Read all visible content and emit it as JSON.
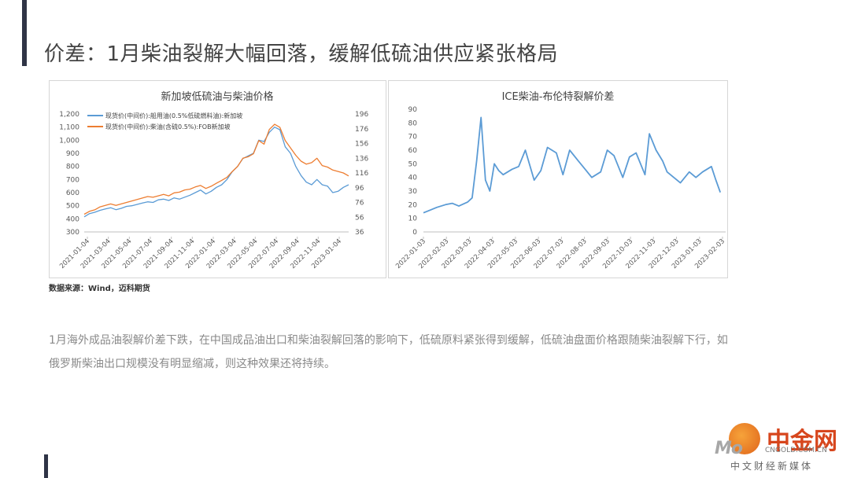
{
  "page": {
    "title": "价差：1月柴油裂解大幅回落，缓解低硫油供应紧张格局",
    "source": "数据来源：Wind，迈科期货",
    "body": "1月海外成品油裂解价差下跌，在中国成品油出口和柴油裂解回落的影响下，低硫原料紧张得到缓解，低硫油盘面价格跟随柴油裂解下行，如俄罗斯柴油出口规模没有明显缩减，则这种效果还将持续。"
  },
  "watermark": {
    "logo_text": "Mo",
    "cn_text": "中金网",
    "domain": "CNGOLD.COM.CN",
    "sub": "中文财经新媒体"
  },
  "colors": {
    "series_blue": "#5b9bd5",
    "series_orange": "#ed7d31",
    "accent": "#2f3446",
    "grid": "#d9d9d9"
  },
  "chart_data": [
    {
      "type": "line",
      "title": "新加坡低硫油与柴油价格",
      "x_tick_labels": [
        "2021-01-04",
        "2021-03-04",
        "2021-05-04",
        "2021-07-04",
        "2021-09-04",
        "2021-11-04",
        "2022-01-04",
        "2022-03-04",
        "2022-05-04",
        "2022-07-04",
        "2022-09-04",
        "2022-11-04",
        "2023-01-04"
      ],
      "y_left": {
        "ticks": [
          "300",
          "400",
          "500",
          "600",
          "700",
          "800",
          "900",
          "1,000",
          "1,100",
          "1,200"
        ],
        "ylim": [
          300,
          1200
        ]
      },
      "y_right": {
        "ticks": [
          "36",
          "56",
          "76",
          "96",
          "116",
          "136",
          "156",
          "176",
          "196"
        ],
        "ylim": [
          36,
          196
        ]
      },
      "legend_position": "top-left",
      "grid": false,
      "series": [
        {
          "name": "现货价(中间价):船用油(0.5%低硫燃料油):新加坡",
          "axis": "left",
          "color": "#5b9bd5",
          "x": [
            0,
            0.5,
            1,
            1.5,
            2,
            2.5,
            3,
            3.5,
            4,
            4.5,
            5,
            5.5,
            6,
            6.5,
            7,
            7.5,
            8,
            8.5,
            9,
            9.5,
            10,
            10.5,
            11,
            11.5,
            12,
            12.5,
            13,
            13.5,
            14,
            14.5,
            15,
            15.5,
            16,
            16.5,
            17,
            17.5,
            18,
            18.5,
            19,
            19.5,
            20,
            20.5,
            21,
            21.5,
            22,
            22.5,
            23,
            23.5,
            24,
            24.5,
            25
          ],
          "values": [
            415,
            440,
            450,
            465,
            475,
            485,
            470,
            480,
            495,
            500,
            510,
            520,
            530,
            525,
            545,
            550,
            540,
            560,
            550,
            565,
            580,
            600,
            620,
            590,
            610,
            640,
            660,
            700,
            760,
            800,
            860,
            880,
            900,
            1000,
            990,
            1060,
            1100,
            1080,
            950,
            900,
            800,
            730,
            680,
            660,
            700,
            660,
            650,
            600,
            610,
            640,
            660
          ]
        },
        {
          "name": "现货价(中间价):柴油(含硫0.5%):FOB新加坡",
          "axis": "right",
          "color": "#ed7d31",
          "x": [
            0,
            0.5,
            1,
            1.5,
            2,
            2.5,
            3,
            3.5,
            4,
            4.5,
            5,
            5.5,
            6,
            6.5,
            7,
            7.5,
            8,
            8.5,
            9,
            9.5,
            10,
            10.5,
            11,
            11.5,
            12,
            12.5,
            13,
            13.5,
            14,
            14.5,
            15,
            15.5,
            16,
            16.5,
            17,
            17.5,
            18,
            18.5,
            19,
            19.5,
            20,
            20.5,
            21,
            21.5,
            22,
            22.5,
            23,
            23.5,
            24,
            24.5,
            25
          ],
          "values": [
            60,
            64,
            66,
            70,
            72,
            74,
            72,
            74,
            76,
            78,
            80,
            82,
            84,
            83,
            85,
            87,
            85,
            89,
            90,
            93,
            94,
            97,
            99,
            95,
            98,
            102,
            106,
            110,
            118,
            125,
            136,
            138,
            142,
            160,
            155,
            175,
            182,
            178,
            160,
            150,
            140,
            132,
            128,
            130,
            136,
            126,
            124,
            120,
            118,
            116,
            112
          ]
        }
      ]
    },
    {
      "type": "line",
      "title": "ICE柴油-布伦特裂解价差",
      "x_tick_labels": [
        "2022-01-03",
        "2022-02-03",
        "2022-03-03",
        "2022-04-03",
        "2022-05-03",
        "2022-06-03",
        "2022-07-03",
        "2022-08-03",
        "2022-09-03",
        "2022-10-03",
        "2022-11-03",
        "2022-12-03",
        "2023-01-03",
        "2023-02-03"
      ],
      "ylim": [
        0,
        90
      ],
      "y_ticks": [
        "0",
        "10",
        "20",
        "30",
        "40",
        "50",
        "60",
        "70",
        "80",
        "90"
      ],
      "grid": false,
      "series": [
        {
          "color": "#5b9bd5",
          "x": [
            0,
            0.3,
            0.6,
            1,
            1.3,
            1.6,
            2,
            2.2,
            2.4,
            2.6,
            2.8,
            3,
            3.2,
            3.4,
            3.6,
            4,
            4.3,
            4.6,
            5,
            5.3,
            5.6,
            6,
            6.3,
            6.6,
            7,
            7.3,
            7.6,
            8,
            8.3,
            8.6,
            9,
            9.3,
            9.6,
            10,
            10.2,
            10.5,
            10.8,
            11,
            11.3,
            11.6,
            12,
            12.3,
            12.6,
            13,
            13.2,
            13.4
          ],
          "values": [
            14,
            16,
            18,
            20,
            21,
            19,
            22,
            25,
            52,
            84,
            38,
            30,
            50,
            45,
            42,
            46,
            48,
            60,
            38,
            45,
            62,
            58,
            42,
            60,
            52,
            46,
            40,
            44,
            60,
            56,
            40,
            55,
            58,
            42,
            72,
            60,
            52,
            44,
            40,
            36,
            44,
            40,
            44,
            48,
            38,
            29
          ]
        }
      ]
    }
  ]
}
